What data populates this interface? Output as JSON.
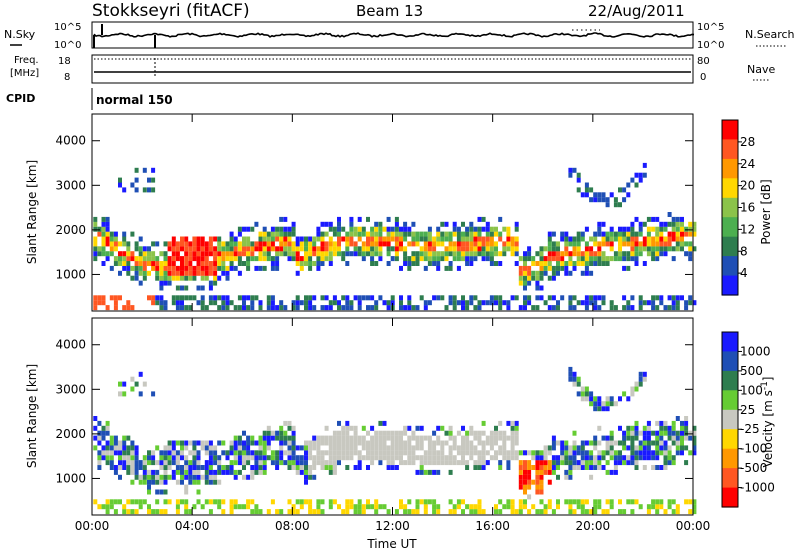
{
  "header": {
    "station": "Stokkseyri (fitACF)",
    "beam": "Beam 13",
    "date": "22/Aug/2011"
  },
  "strip_labels": {
    "nsky": "N.Sky",
    "nsearch": "N.Search",
    "freq_line1": "Freq.",
    "freq_line2": "[MHz]",
    "nave": "Nave",
    "cpid": "CPID",
    "cpid_value": "normal 150",
    "noise_top": "10^5",
    "noise_bottom": "10^0",
    "freq_top": "18",
    "freq_bottom": "8",
    "nave_top": "80",
    "nave_bottom": "0"
  },
  "colors": {
    "power_scale": [
      "#1a1aff",
      "#1f4fb5",
      "#2e7d4f",
      "#4caf50",
      "#8bc34a",
      "#ffd700",
      "#ff9800",
      "#ff5722",
      "#ff0000"
    ],
    "velocity_scale": [
      "#1a1aff",
      "#1f4fb5",
      "#2e7d4f",
      "#66cc33",
      "#c8c8c0",
      "#ffd700",
      "#ff9800",
      "#ff5722",
      "#ff0000"
    ]
  },
  "chart_data": [
    {
      "type": "heatmap",
      "title": "",
      "xlabel": "",
      "ylabel": "Slant Range [km]",
      "xlim": [
        0,
        24
      ],
      "ylim": [
        180,
        4600
      ],
      "x_ticks": [
        "00:00",
        "04:00",
        "08:00",
        "12:00",
        "16:00",
        "20:00",
        "00:00"
      ],
      "y_ticks": [
        1000,
        2000,
        3000,
        4000
      ],
      "colorbar": {
        "label": "Power [dB]",
        "ticks": [
          4,
          8,
          12,
          16,
          20,
          24,
          28
        ]
      }
    },
    {
      "type": "heatmap",
      "title": "",
      "xlabel": "Time UT",
      "ylabel": "Slant Range [km]",
      "xlim": [
        0,
        24
      ],
      "ylim": [
        180,
        4600
      ],
      "x_ticks": [
        "00:00",
        "04:00",
        "08:00",
        "12:00",
        "16:00",
        "20:00",
        "00:00"
      ],
      "y_ticks": [
        1000,
        2000,
        3000,
        4000
      ],
      "colorbar": {
        "label": "Velocity [m s^-1]",
        "ticks": [
          "1000",
          "500",
          "100",
          "25",
          "-25",
          "-100",
          "-500",
          "-1000"
        ]
      }
    }
  ]
}
